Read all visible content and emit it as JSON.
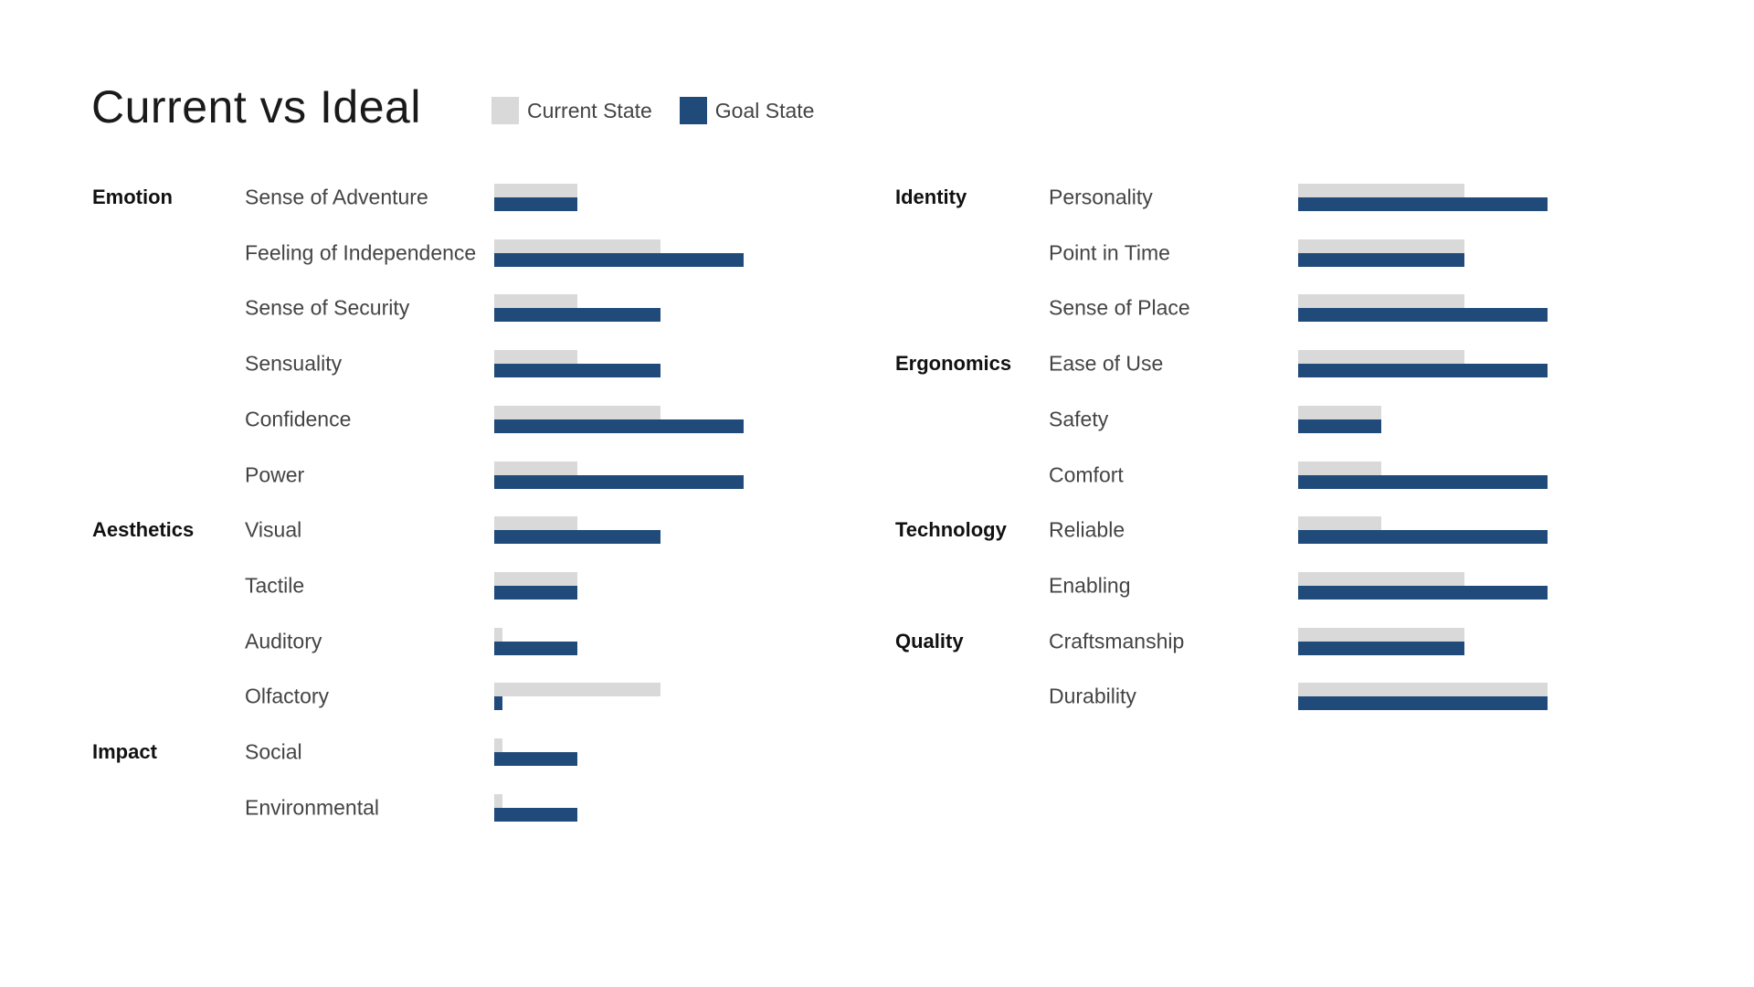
{
  "title": "Current vs Ideal",
  "legend": {
    "current_label": "Current State",
    "goal_label": "Goal State"
  },
  "colors": {
    "current": "#d9d9d9",
    "goal": "#1f4a7a"
  },
  "chart_data": {
    "type": "bar",
    "orientation": "horizontal",
    "title": "Current vs Ideal",
    "xlim": [
      0,
      3
    ],
    "series": [
      {
        "name": "Current State",
        "color": "#d9d9d9"
      },
      {
        "name": "Goal State",
        "color": "#1f4a7a"
      }
    ],
    "panels": [
      {
        "rows": [
          {
            "category": "Emotion",
            "label": "Sense of Adventure",
            "current": 1,
            "goal": 1
          },
          {
            "category": "",
            "label": "Feeling of Independence",
            "current": 2,
            "goal": 3
          },
          {
            "category": "",
            "label": "Sense of Security",
            "current": 1,
            "goal": 2
          },
          {
            "category": "",
            "label": "Sensuality",
            "current": 1,
            "goal": 2
          },
          {
            "category": "",
            "label": "Confidence",
            "current": 2,
            "goal": 3
          },
          {
            "category": "",
            "label": "Power",
            "current": 1,
            "goal": 3
          },
          {
            "category": "Aesthetics",
            "label": "Visual",
            "current": 1,
            "goal": 2
          },
          {
            "category": "",
            "label": "Tactile",
            "current": 1,
            "goal": 1
          },
          {
            "category": "",
            "label": "Auditory",
            "current": 0.1,
            "goal": 1
          },
          {
            "category": "",
            "label": "Olfactory",
            "current": 2,
            "goal": 0.1
          },
          {
            "category": "Impact",
            "label": "Social",
            "current": 0.1,
            "goal": 1
          },
          {
            "category": "",
            "label": "Environmental",
            "current": 0.1,
            "goal": 1
          }
        ]
      },
      {
        "rows": [
          {
            "category": "Identity",
            "label": "Personality",
            "current": 2,
            "goal": 3
          },
          {
            "category": "",
            "label": "Point in Time",
            "current": 2,
            "goal": 2
          },
          {
            "category": "",
            "label": "Sense of Place",
            "current": 2,
            "goal": 3
          },
          {
            "category": "Ergonomics",
            "label": "Ease of Use",
            "current": 2,
            "goal": 3
          },
          {
            "category": "",
            "label": "Safety",
            "current": 1,
            "goal": 1
          },
          {
            "category": "",
            "label": "Comfort",
            "current": 1,
            "goal": 3
          },
          {
            "category": "Technology",
            "label": "Reliable",
            "current": 1,
            "goal": 3
          },
          {
            "category": "",
            "label": "Enabling",
            "current": 2,
            "goal": 3
          },
          {
            "category": "Quality",
            "label": "Craftsmanship",
            "current": 2,
            "goal": 2
          },
          {
            "category": "",
            "label": "Durability",
            "current": 3,
            "goal": 3
          }
        ]
      }
    ]
  }
}
